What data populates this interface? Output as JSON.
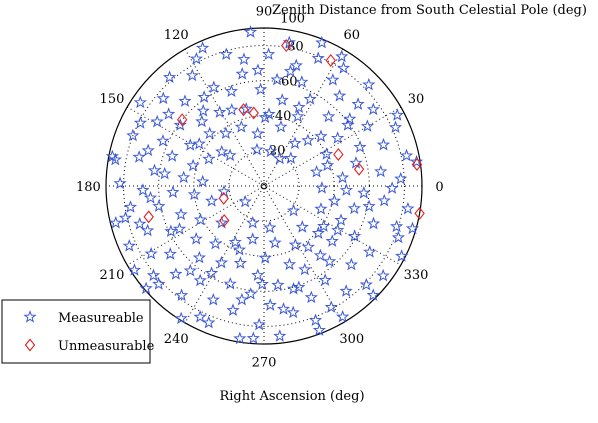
{
  "chart_data": {
    "type": "scatter",
    "subtype": "polar",
    "title": "",
    "ylabel": "Zenith Distance from South Celestial Pole (deg)",
    "xlabel": "Right Ascension (deg)",
    "radial_range": [
      0,
      90
    ],
    "radial_ticks": [
      "20",
      "40",
      "60",
      "80"
    ],
    "radial_tick_values": [
      20,
      40,
      60,
      80
    ],
    "angular_ticks": [
      "0",
      "30",
      "60",
      "90",
      "120",
      "150",
      "180",
      "210",
      "240",
      "270",
      "300",
      "330"
    ],
    "angular_tick_values": [
      0,
      30,
      60,
      90,
      120,
      150,
      180,
      210,
      240,
      270,
      300,
      330
    ],
    "outer_label": "100",
    "outer_label_angle": 80,
    "grid": true,
    "legend_position": "bottom-left",
    "series": [
      {
        "name": "Measureable",
        "marker": "star",
        "color": "#3a58d8",
        "points": [
          [
            3,
            78
          ],
          [
            6,
            45
          ],
          [
            9,
            88
          ],
          [
            14,
            54
          ],
          [
            15,
            31
          ],
          [
            19,
            72
          ],
          [
            22,
            59
          ],
          [
            24,
            82
          ],
          [
            27,
            40
          ],
          [
            30,
            68
          ],
          [
            33,
            50
          ],
          [
            35,
            76
          ],
          [
            38,
            62
          ],
          [
            41,
            43
          ],
          [
            44,
            83
          ],
          [
            47,
            54
          ],
          [
            50,
            67
          ],
          [
            54,
            30
          ],
          [
            57,
            72
          ],
          [
            59,
            86
          ],
          [
            62,
            56
          ],
          [
            64,
            44
          ],
          [
            67,
            79
          ],
          [
            70,
            63
          ],
          [
            74,
            35
          ],
          [
            75,
            71
          ],
          [
            78,
            50
          ],
          [
            80,
            83
          ],
          [
            83,
            61
          ],
          [
            86,
            41
          ],
          [
            88,
            75
          ],
          [
            92,
            55
          ],
          [
            95,
            88
          ],
          [
            97,
            30
          ],
          [
            101,
            65
          ],
          [
            103,
            45
          ],
          [
            106,
            78
          ],
          [
            109,
            57
          ],
          [
            111,
            36
          ],
          [
            114,
            86
          ],
          [
            117,
            63
          ],
          [
            121,
            49
          ],
          [
            123,
            75
          ],
          [
            126,
            37
          ],
          [
            129,
            55
          ],
          [
            131,
            82
          ],
          [
            133,
            66
          ],
          [
            136,
            43
          ],
          [
            139,
            76
          ],
          [
            141,
            31
          ],
          [
            144,
            59
          ],
          [
            146,
            85
          ],
          [
            149,
            71
          ],
          [
            151,
            48
          ],
          [
            154,
            35
          ],
          [
            156,
            63
          ],
          [
            159,
            80
          ],
          [
            162,
            55
          ],
          [
            164,
            42
          ],
          [
            167,
            73
          ],
          [
            169,
            88
          ],
          [
            172,
            63
          ],
          [
            174,
            46
          ],
          [
            176,
            35
          ],
          [
            179,
            82
          ],
          [
            182,
            69
          ],
          [
            184,
            52
          ],
          [
            187,
            40
          ],
          [
            189,
            77
          ],
          [
            191,
            61
          ],
          [
            194,
            87
          ],
          [
            196,
            31
          ],
          [
            199,
            50
          ],
          [
            201,
            71
          ],
          [
            204,
            84
          ],
          [
            206,
            59
          ],
          [
            208,
            41
          ],
          [
            211,
            75
          ],
          [
            213,
            88
          ],
          [
            216,
            66
          ],
          [
            218,
            49
          ],
          [
            221,
            32
          ],
          [
            223,
            82
          ],
          [
            225,
            71
          ],
          [
            228,
            55
          ],
          [
            230,
            43
          ],
          [
            233,
            78
          ],
          [
            236,
            65
          ],
          [
            238,
            89
          ],
          [
            241,
            50
          ],
          [
            243,
            36
          ],
          [
            246,
            71
          ],
          [
            248,
            84
          ],
          [
            251,
            59
          ],
          [
            253,
            46
          ],
          [
            256,
            73
          ],
          [
            258,
            31
          ],
          [
            261,
            88
          ],
          [
            263,
            62
          ],
          [
            266,
            51
          ],
          [
            268,
            79
          ],
          [
            271,
            41
          ],
          [
            273,
            68
          ],
          [
            276,
            86
          ],
          [
            278,
            57
          ],
          [
            281,
            33
          ],
          [
            283,
            74
          ],
          [
            286,
            61
          ],
          [
            288,
            47
          ],
          [
            291,
            82
          ],
          [
            293,
            69
          ],
          [
            296,
            53
          ],
          [
            298,
            38
          ],
          [
            301,
            87
          ],
          [
            303,
            64
          ],
          [
            306,
            43
          ],
          [
            308,
            76
          ],
          [
            311,
            57
          ],
          [
            313,
            32
          ],
          [
            316,
            81
          ],
          [
            318,
            67
          ],
          [
            321,
            50
          ],
          [
            323,
            85
          ],
          [
            326,
            41
          ],
          [
            328,
            71
          ],
          [
            331,
            59
          ],
          [
            333,
            88
          ],
          [
            336,
            48
          ],
          [
            338,
            35
          ],
          [
            341,
            66
          ],
          [
            343,
            79
          ],
          [
            346,
            53
          ],
          [
            348,
            41
          ],
          [
            351,
            83
          ],
          [
            353,
            69
          ],
          [
            356,
            57
          ],
          [
            358,
            33
          ],
          [
            359,
            73
          ],
          [
            7,
            67
          ],
          [
            18,
            38
          ],
          [
            28,
            86
          ],
          [
            36,
            59
          ],
          [
            46,
            36
          ],
          [
            56,
            81
          ],
          [
            66,
            49
          ],
          [
            77,
            67
          ],
          [
            89,
            39
          ],
          [
            99,
            73
          ],
          [
            113,
            47
          ],
          [
            124,
            61
          ],
          [
            134,
            51
          ],
          [
            143,
            68
          ],
          [
            153,
            79
          ],
          [
            163,
            69
          ],
          [
            173,
            57
          ],
          [
            186,
            65
          ],
          [
            197,
            74
          ],
          [
            207,
            54
          ],
          [
            219,
            81
          ],
          [
            229,
            64
          ],
          [
            239,
            58
          ],
          [
            249,
            39
          ],
          [
            259,
            66
          ],
          [
            269,
            56
          ],
          [
            279,
            71
          ],
          [
            289,
            61
          ],
          [
            299,
            79
          ],
          [
            309,
            51
          ],
          [
            319,
            41
          ],
          [
            329,
            49
          ],
          [
            339,
            82
          ],
          [
            349,
            61
          ],
          [
            357,
            47
          ],
          [
            12,
            83
          ],
          [
            41,
            71
          ],
          [
            68,
            88
          ],
          [
            93,
            66
          ],
          [
            118,
            82
          ],
          [
            147,
            44
          ],
          [
            170,
            86
          ],
          [
            193,
            81
          ],
          [
            221,
            89
          ],
          [
            244,
            83
          ],
          [
            266,
            87
          ],
          [
            291,
            88
          ],
          [
            315,
            88
          ],
          [
            344,
            88
          ],
          [
            79,
            20
          ],
          [
            101,
            21
          ],
          [
            188,
            23
          ],
          [
            253,
            22
          ],
          [
            278,
            24
          ],
          [
            320,
            22
          ],
          [
            46,
            22
          ],
          [
            138,
            26
          ],
          [
            220,
            14
          ],
          [
            60,
            18
          ]
        ]
      },
      {
        "name": "Unmeasurable",
        "marker": "diamond",
        "color": "#e02020",
        "points": [
          [
            81,
            81
          ],
          [
            62,
            81
          ],
          [
            105,
            45
          ],
          [
            98,
            42
          ],
          [
            141,
            60
          ],
          [
            195,
            68
          ],
          [
            197,
            24
          ],
          [
            221,
            30
          ],
          [
            10,
            55
          ],
          [
            23,
            46
          ],
          [
            8,
            88
          ],
          [
            350,
            90
          ]
        ]
      }
    ]
  }
}
